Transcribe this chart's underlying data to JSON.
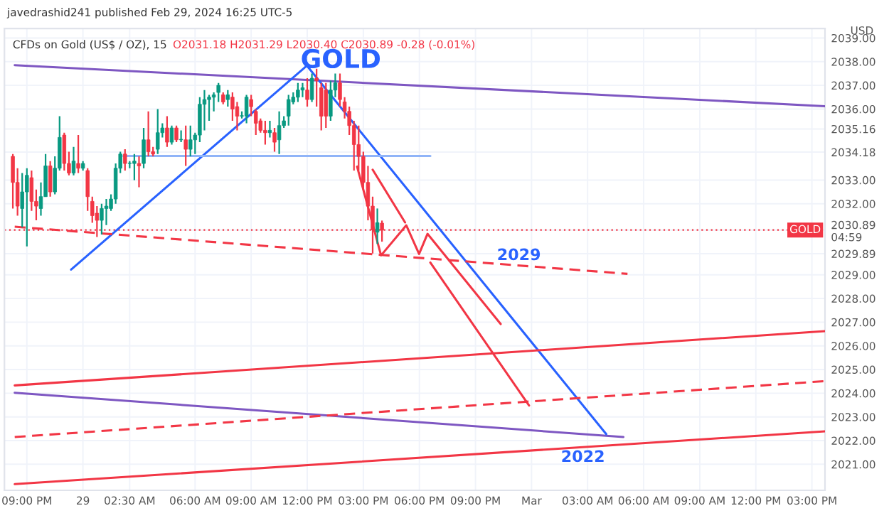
{
  "chart_data": {
    "type": "candlestick",
    "title": "CFDs on Gold (US$ / OZ), 15",
    "ylabel": "USD",
    "annotations": [
      "javedrashid241 published Feb 29, 2024 16:25 UTC-5",
      "O2031.18 H2031.29 L2030.40 C2030.89 -0.28 (-0.01%)",
      "GOLD",
      "2029",
      "2022"
    ],
    "x": [
      "2024-02-28T20:15",
      "2024-02-28T20:30",
      "2024-02-28T20:45",
      "2024-02-28T21:00",
      "2024-02-28T21:15",
      "2024-02-28T21:30",
      "2024-02-28T21:45",
      "2024-02-28T22:00",
      "2024-02-28T22:15",
      "2024-02-28T22:30",
      "2024-02-28T22:45",
      "2024-02-28T23:00",
      "2024-02-28T23:15",
      "2024-02-28T23:30",
      "2024-02-28T23:45",
      "2024-02-29T00:00",
      "2024-02-29T00:15",
      "2024-02-29T00:30",
      "2024-02-29T00:45",
      "2024-02-29T01:00",
      "2024-02-29T01:15",
      "2024-02-29T01:30",
      "2024-02-29T01:45",
      "2024-02-29T02:00",
      "2024-02-29T02:15",
      "2024-02-29T02:30",
      "2024-02-29T02:45",
      "2024-02-29T03:00",
      "2024-02-29T03:15",
      "2024-02-29T03:30",
      "2024-02-29T03:45",
      "2024-02-29T04:00",
      "2024-02-29T04:15",
      "2024-02-29T04:30",
      "2024-02-29T04:45",
      "2024-02-29T05:00",
      "2024-02-29T05:15",
      "2024-02-29T05:30",
      "2024-02-29T05:45",
      "2024-02-29T06:00",
      "2024-02-29T06:15",
      "2024-02-29T06:30",
      "2024-02-29T06:45",
      "2024-02-29T07:00",
      "2024-02-29T07:15",
      "2024-02-29T07:30",
      "2024-02-29T07:45",
      "2024-02-29T08:00",
      "2024-02-29T08:15",
      "2024-02-29T08:30",
      "2024-02-29T08:45",
      "2024-02-29T09:00",
      "2024-02-29T09:15",
      "2024-02-29T09:30",
      "2024-02-29T09:45",
      "2024-02-29T10:00",
      "2024-02-29T10:15",
      "2024-02-29T10:30",
      "2024-02-29T10:45",
      "2024-02-29T11:00",
      "2024-02-29T11:15",
      "2024-02-29T11:30",
      "2024-02-29T11:45",
      "2024-02-29T12:00",
      "2024-02-29T12:15",
      "2024-02-29T12:30",
      "2024-02-29T12:45",
      "2024-02-29T13:00",
      "2024-02-29T13:15",
      "2024-02-29T13:30",
      "2024-02-29T13:45",
      "2024-02-29T14:00",
      "2024-02-29T14:15",
      "2024-02-29T14:30",
      "2024-02-29T14:45",
      "2024-02-29T15:00",
      "2024-02-29T15:15",
      "2024-02-29T15:30",
      "2024-02-29T15:45",
      "2024-02-29T16:00"
    ],
    "ohlc": [
      [
        2034.0,
        2034.1,
        2031.8,
        2032.9
      ],
      [
        2032.9,
        2033.5,
        2031.5,
        2031.9
      ],
      [
        2031.8,
        2033.3,
        2031.0,
        2032.5
      ],
      [
        2032.5,
        2033.5,
        2030.2,
        2033.2
      ],
      [
        2033.1,
        2033.4,
        2031.7,
        2032.1
      ],
      [
        2032.1,
        2032.6,
        2031.3,
        2031.9
      ],
      [
        2031.8,
        2032.9,
        2031.5,
        2032.3
      ],
      [
        2032.3,
        2034.1,
        2032.3,
        2033.6
      ],
      [
        2033.6,
        2033.8,
        2032.3,
        2032.5
      ],
      [
        2032.5,
        2034.0,
        2032.4,
        2033.5
      ],
      [
        2033.5,
        2035.7,
        2033.4,
        2034.8
      ],
      [
        2034.9,
        2035.0,
        2033.4,
        2033.7
      ],
      [
        2033.7,
        2034.2,
        2033.2,
        2033.3
      ],
      [
        2033.3,
        2034.4,
        2033.2,
        2033.8
      ],
      [
        2033.7,
        2034.9,
        2033.3,
        2033.5
      ],
      [
        2033.5,
        2033.8,
        2033.4,
        2033.7
      ],
      [
        2033.4,
        2033.5,
        2031.7,
        2032.3
      ],
      [
        2032.1,
        2032.3,
        2031.2,
        2031.5
      ],
      [
        2031.6,
        2031.9,
        2030.6,
        2031.3
      ],
      [
        2031.3,
        2032.0,
        2030.7,
        2031.8
      ],
      [
        2031.8,
        2032.2,
        2031.1,
        2031.9
      ],
      [
        2031.8,
        2032.4,
        2031.7,
        2032.2
      ],
      [
        2032.2,
        2033.7,
        2032.0,
        2033.5
      ],
      [
        2033.5,
        2034.2,
        2033.3,
        2034.1
      ],
      [
        2034.1,
        2034.3,
        2033.4,
        2033.7
      ],
      [
        2033.7,
        2033.8,
        2033.5,
        2033.7
      ],
      [
        2033.7,
        2034.1,
        2033.0,
        2033.8
      ],
      [
        2033.7,
        2034.0,
        2032.7,
        2033.6
      ],
      [
        2033.7,
        2035.2,
        2033.5,
        2034.7
      ],
      [
        2034.7,
        2035.9,
        2034.0,
        2034.2
      ],
      [
        2034.2,
        2034.4,
        2034.0,
        2034.1
      ],
      [
        2034.3,
        2036.0,
        2034.1,
        2035.0
      ],
      [
        2035.0,
        2035.4,
        2034.8,
        2035.2
      ],
      [
        2035.2,
        2035.7,
        2034.4,
        2034.6
      ],
      [
        2034.6,
        2035.3,
        2034.5,
        2035.2
      ],
      [
        2035.2,
        2035.3,
        2034.6,
        2034.7
      ],
      [
        2034.7,
        2035.1,
        2034.6,
        2034.7
      ],
      [
        2034.7,
        2035.3,
        2033.6,
        2034.3
      ],
      [
        2034.3,
        2035.3,
        2034.0,
        2034.7
      ],
      [
        2034.7,
        2035.0,
        2034.1,
        2034.9
      ],
      [
        2034.9,
        2036.5,
        2034.6,
        2036.2
      ],
      [
        2036.2,
        2036.8,
        2035.1,
        2036.4
      ],
      [
        2036.4,
        2036.6,
        2035.5,
        2036.5
      ],
      [
        2036.5,
        2036.7,
        2035.9,
        2036.6
      ],
      [
        2036.7,
        2037.1,
        2036.3,
        2037.0
      ],
      [
        2036.6,
        2036.7,
        2036.2,
        2036.3
      ],
      [
        2036.4,
        2036.8,
        2036.1,
        2036.6
      ],
      [
        2036.5,
        2036.7,
        2035.5,
        2036.0
      ],
      [
        2036.1,
        2036.3,
        2035.1,
        2035.7
      ],
      [
        2035.7,
        2035.9,
        2035.6,
        2035.7
      ],
      [
        2035.7,
        2036.6,
        2035.4,
        2036.5
      ],
      [
        2036.4,
        2036.6,
        2035.7,
        2036.1
      ],
      [
        2035.9,
        2036.0,
        2034.9,
        2035.4
      ],
      [
        2035.5,
        2035.6,
        2035.0,
        2035.1
      ],
      [
        2035.1,
        2035.5,
        2034.5,
        2035.0
      ],
      [
        2035.0,
        2035.5,
        2034.8,
        2035.1
      ],
      [
        2035.0,
        2035.2,
        2034.2,
        2034.6
      ],
      [
        2034.7,
        2035.9,
        2034.1,
        2035.3
      ],
      [
        2035.3,
        2035.7,
        2035.2,
        2035.5
      ],
      [
        2035.7,
        2036.6,
        2035.3,
        2036.4
      ],
      [
        2036.3,
        2036.7,
        2036.2,
        2036.5
      ],
      [
        2036.5,
        2037.1,
        2036.3,
        2036.8
      ],
      [
        2036.8,
        2037.1,
        2036.5,
        2036.9
      ],
      [
        2036.8,
        2037.3,
        2036.1,
        2036.4
      ],
      [
        2036.4,
        2037.5,
        2036.3,
        2037.3
      ],
      [
        2037.3,
        2037.7,
        2036.1,
        2037.2
      ],
      [
        2036.9,
        2037.1,
        2035.1,
        2035.7
      ],
      [
        2036.8,
        2037.1,
        2035.2,
        2035.7
      ],
      [
        2035.7,
        2037.2,
        2035.5,
        2036.8
      ],
      [
        2036.8,
        2037.5,
        2036.5,
        2037.1
      ],
      [
        2037.1,
        2037.5,
        2036.1,
        2036.4
      ],
      [
        2036.3,
        2036.5,
        2035.6,
        2035.9
      ],
      [
        2035.9,
        2036.1,
        2034.9,
        2035.3
      ],
      [
        2035.3,
        2035.5,
        2033.4,
        2034.5
      ],
      [
        2034.5,
        2035.3,
        2033.4,
        2034.0
      ],
      [
        2034.0,
        2034.2,
        2032.6,
        2032.9
      ],
      [
        2032.9,
        2033.6,
        2031.3,
        2031.9
      ],
      [
        2031.9,
        2032.3,
        2029.9,
        2030.9
      ],
      [
        2030.8,
        2031.8,
        2030.3,
        2031.2
      ],
      [
        2031.18,
        2031.29,
        2030.4,
        2030.89
      ]
    ],
    "series": [
      {
        "type": "line",
        "color": "#7e57c2",
        "x": [
          "2024-02-28T20:21",
          "2024-03-01T15:42"
        ],
        "values": [
          2037.85,
          2036.12
        ]
      },
      {
        "type": "line",
        "color": "#7e57c2",
        "x": [
          "2024-02-28T20:21",
          "2024-03-01T04:55"
        ],
        "values": [
          2024.02,
          2022.15
        ]
      },
      {
        "type": "line",
        "color": "#2962ff",
        "x": [
          "2024-02-28T23:22",
          "2024-02-29T11:59",
          "2024-03-01T04:00"
        ],
        "values": [
          2029.22,
          2037.83,
          2022.27
        ]
      },
      {
        "type": "line",
        "color": "#f23645",
        "x": [
          "2024-02-28T20:21",
          "2024-03-01T15:42"
        ],
        "values": [
          2024.33,
          2026.62
        ]
      },
      {
        "type": "line",
        "color": "#f23645",
        "x": [
          "2024-02-28T20:21",
          "2024-03-01T15:42"
        ],
        "values": [
          2020.16,
          2022.39
        ]
      },
      {
        "type": "line",
        "color": "#f23645",
        "line_style": "dashed",
        "x": [
          "2024-02-28T20:21",
          "2024-03-01T15:42"
        ],
        "values": [
          2022.15,
          2024.51
        ]
      },
      {
        "type": "line",
        "color": "#f23645",
        "line_style": "dashed",
        "x": [
          "2024-02-28T20:21",
          "2024-03-01T05:08"
        ],
        "values": [
          2031.03,
          2029.04
        ]
      },
      {
        "type": "line",
        "color": "#f23645",
        "x": [
          "2024-02-29T14:40",
          "2024-02-29T15:57",
          "2024-02-29T17:18",
          "2024-02-29T17:59",
          "2024-02-29T18:26",
          "2024-02-29T22:21"
        ],
        "values": [
          2033.57,
          2029.82,
          2031.09,
          2029.88,
          2030.73,
          2026.92
        ]
      },
      {
        "type": "line",
        "color": "#f23645",
        "x": [
          "2024-02-29T15:30",
          "2024-02-29T17:14"
        ],
        "values": [
          2033.44,
          2031.21
        ]
      },
      {
        "type": "line",
        "color": "#f23645",
        "x": [
          "2024-02-29T18:35",
          "2024-02-29T23:52"
        ],
        "values": [
          2029.52,
          2023.48
        ]
      },
      {
        "type": "line",
        "color": "#90b4f8",
        "x": [
          "2024-02-29T02:10",
          "2024-02-29T18:35"
        ],
        "values": [
          2034.02,
          2034.02
        ]
      }
    ],
    "ref_lines": [
      {
        "axis": "y",
        "value": 2030.89,
        "label": "GOLD",
        "color": "#f23645",
        "line_style": "dotted"
      }
    ],
    "xlim": [
      "2024-02-28T19:48",
      "2024-03-01T15:42"
    ],
    "xticks": [
      {
        "value": "2024-02-28T21:00",
        "label": "09:00 PM"
      },
      {
        "value": "2024-02-29T00:00",
        "label": "29"
      },
      {
        "value": "2024-02-29T02:30",
        "label": "02:30 AM"
      },
      {
        "value": "2024-02-29T06:00",
        "label": "06:00 AM"
      },
      {
        "value": "2024-02-29T09:00",
        "label": "09:00 AM"
      },
      {
        "value": "2024-02-29T12:00",
        "label": "12:00 PM"
      },
      {
        "value": "2024-02-29T15:00",
        "label": "03:00 PM"
      },
      {
        "value": "2024-02-29T18:00",
        "label": "06:00 PM"
      },
      {
        "value": "2024-02-29T21:00",
        "label": "09:00 PM"
      },
      {
        "value": "2024-03-01T00:00",
        "label": "Mar"
      },
      {
        "value": "2024-03-01T03:00",
        "label": "03:00 AM"
      },
      {
        "value": "2024-03-01T06:00",
        "label": "06:00 AM"
      },
      {
        "value": "2024-03-01T09:00",
        "label": "09:00 AM"
      },
      {
        "value": "2024-03-01T12:00",
        "label": "12:00 PM"
      },
      {
        "value": "2024-03-01T15:00",
        "label": "03:00 PM"
      }
    ],
    "ylim": [
      2019.9,
      2039.4
    ],
    "yticks": [
      {
        "value": 2039,
        "label": "2039.00"
      },
      {
        "value": 2038,
        "label": "2038.00"
      },
      {
        "value": 2037,
        "label": "2037.00"
      },
      {
        "value": 2036,
        "label": "2036.00"
      },
      {
        "value": 2035.16,
        "label": "2035.16"
      },
      {
        "value": 2034.18,
        "label": "2034.18"
      },
      {
        "value": 2033,
        "label": "2033.00"
      },
      {
        "value": 2032,
        "label": "2032.00"
      },
      {
        "value": 2030.89,
        "label": "2030.89\n04:59"
      },
      {
        "value": 2029.89,
        "label": "2029.89"
      },
      {
        "value": 2029,
        "label": "2029.00"
      },
      {
        "value": 2028,
        "label": "2028.00"
      },
      {
        "value": 2027,
        "label": "2027.00"
      },
      {
        "value": 2026,
        "label": "2026.00"
      },
      {
        "value": 2025,
        "label": "2025.00"
      },
      {
        "value": 2024,
        "label": "2024.00"
      },
      {
        "value": 2023,
        "label": "2023.00"
      },
      {
        "value": 2022,
        "label": "2022.00"
      },
      {
        "value": 2021,
        "label": "2021.00"
      }
    ],
    "grid": true,
    "legend": false
  }
}
